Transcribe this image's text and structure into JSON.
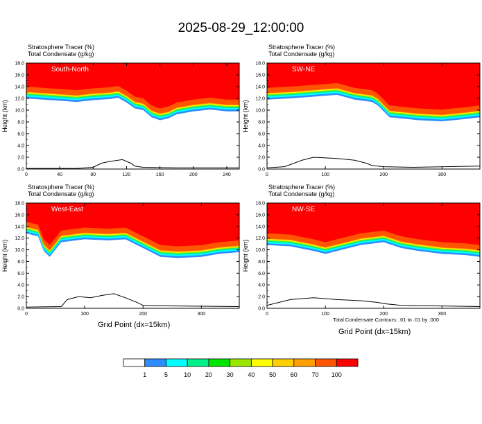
{
  "title": "2025-08-29_12:00:00",
  "shading_label": "Stratosphere Tracer",
  "shading_units": "(%)",
  "contour_label": "Total Condensate",
  "contour_units": "(g/kg)",
  "ylabel": "Height (km)",
  "xlabel": "Grid Point (dx=15km)",
  "contour_note": "Total Condensate Contours: .01 to .01 by .000",
  "colors": {
    "bands": [
      "#ffffff",
      "#2e8cff",
      "#00ffff",
      "#00f08c",
      "#00e600",
      "#9be600",
      "#ffff00",
      "#ffd000",
      "#ffa000",
      "#ff5500",
      "#ff0000"
    ],
    "line": "#000000",
    "terrain": "#000000"
  },
  "colorbar": {
    "labels": [
      "1",
      "5",
      "10",
      "20",
      "30",
      "40",
      "50",
      "60",
      "70",
      "100"
    ]
  },
  "chart_data": [
    {
      "type": "heatmap",
      "panel": "South-North",
      "ylim": [
        0,
        18
      ],
      "yticks": [
        "0.0",
        "2.0",
        "4.0",
        "6.0",
        "8.0",
        "10.0",
        "12.0",
        "14.0",
        "16.0",
        "18.0"
      ],
      "xlim": [
        0,
        255
      ],
      "xticks": [
        "0",
        "40",
        "80",
        "120",
        "160",
        "200",
        "240"
      ],
      "xtick_values": [
        0,
        40,
        80,
        120,
        160,
        200,
        240
      ],
      "tropopause_base_km": [
        [
          0,
          13.2
        ],
        [
          20,
          13.0
        ],
        [
          40,
          12.8
        ],
        [
          60,
          12.6
        ],
        [
          80,
          12.9
        ],
        [
          100,
          13.1
        ],
        [
          110,
          13.3
        ],
        [
          120,
          12.5
        ],
        [
          130,
          11.5
        ],
        [
          140,
          11.2
        ],
        [
          150,
          10.0
        ],
        [
          160,
          9.5
        ],
        [
          170,
          9.8
        ],
        [
          180,
          10.5
        ],
        [
          200,
          11.0
        ],
        [
          220,
          11.3
        ],
        [
          240,
          11.0
        ],
        [
          255,
          11.0
        ]
      ],
      "terrain_km": [
        [
          0,
          0.1
        ],
        [
          60,
          0.1
        ],
        [
          80,
          0.3
        ],
        [
          90,
          1.0
        ],
        [
          100,
          1.3
        ],
        [
          115,
          1.6
        ],
        [
          125,
          1.0
        ],
        [
          130,
          0.5
        ],
        [
          140,
          0.3
        ],
        [
          180,
          0.2
        ],
        [
          255,
          0.2
        ]
      ]
    },
    {
      "type": "heatmap",
      "panel": "SW-NE",
      "ylim": [
        0,
        18
      ],
      "yticks": [
        "0.0",
        "2.0",
        "4.0",
        "6.0",
        "8.0",
        "10.0",
        "12.0",
        "14.0",
        "16.0",
        "18.0"
      ],
      "xlim": [
        0,
        365
      ],
      "xticks": [
        "0",
        "100",
        "200",
        "300"
      ],
      "xtick_values": [
        0,
        100,
        200,
        300
      ],
      "tropopause_base_km": [
        [
          0,
          13.0
        ],
        [
          40,
          13.2
        ],
        [
          80,
          13.5
        ],
        [
          120,
          13.8
        ],
        [
          150,
          13.0
        ],
        [
          180,
          12.6
        ],
        [
          190,
          12.0
        ],
        [
          200,
          11.0
        ],
        [
          210,
          10.0
        ],
        [
          230,
          9.8
        ],
        [
          260,
          9.5
        ],
        [
          300,
          9.3
        ],
        [
          340,
          9.7
        ],
        [
          365,
          10.0
        ]
      ],
      "terrain_km": [
        [
          0,
          0.2
        ],
        [
          30,
          0.4
        ],
        [
          60,
          1.5
        ],
        [
          80,
          2.0
        ],
        [
          120,
          1.8
        ],
        [
          150,
          1.5
        ],
        [
          170,
          1.0
        ],
        [
          180,
          0.6
        ],
        [
          200,
          0.4
        ],
        [
          250,
          0.3
        ],
        [
          365,
          0.5
        ]
      ]
    },
    {
      "type": "heatmap",
      "panel": "West-East",
      "ylim": [
        0,
        18
      ],
      "yticks": [
        "0.0",
        "2.0",
        "4.0",
        "6.0",
        "8.0",
        "10.0",
        "12.0",
        "14.0",
        "16.0",
        "18.0"
      ],
      "xlim": [
        0,
        365
      ],
      "xticks": [
        "0",
        "100",
        "200",
        "300"
      ],
      "xtick_values": [
        0,
        100,
        200,
        300
      ],
      "tropopause_base_km": [
        [
          0,
          14.0
        ],
        [
          20,
          13.5
        ],
        [
          30,
          11.0
        ],
        [
          40,
          10.0
        ],
        [
          60,
          12.5
        ],
        [
          100,
          13.0
        ],
        [
          140,
          12.8
        ],
        [
          170,
          13.0
        ],
        [
          200,
          11.5
        ],
        [
          230,
          10.0
        ],
        [
          260,
          9.8
        ],
        [
          300,
          10.0
        ],
        [
          330,
          10.5
        ],
        [
          365,
          10.8
        ]
      ],
      "terrain_km": [
        [
          0,
          0.2
        ],
        [
          60,
          0.3
        ],
        [
          70,
          1.5
        ],
        [
          90,
          2.0
        ],
        [
          110,
          1.8
        ],
        [
          130,
          2.2
        ],
        [
          150,
          2.5
        ],
        [
          170,
          1.8
        ],
        [
          190,
          1.0
        ],
        [
          200,
          0.5
        ],
        [
          250,
          0.4
        ],
        [
          365,
          0.3
        ]
      ]
    },
    {
      "type": "heatmap",
      "panel": "NW-SE",
      "ylim": [
        0,
        18
      ],
      "yticks": [
        "0.0",
        "2.0",
        "4.0",
        "6.0",
        "8.0",
        "10.0",
        "12.0",
        "14.0",
        "16.0",
        "18.0"
      ],
      "xlim": [
        0,
        365
      ],
      "xticks": [
        "0",
        "100",
        "200",
        "300"
      ],
      "xtick_values": [
        0,
        100,
        200,
        300
      ],
      "tropopause_base_km": [
        [
          0,
          12.0
        ],
        [
          40,
          11.8
        ],
        [
          80,
          11.0
        ],
        [
          100,
          10.5
        ],
        [
          120,
          11.0
        ],
        [
          140,
          11.5
        ],
        [
          160,
          12.0
        ],
        [
          200,
          12.5
        ],
        [
          230,
          11.5
        ],
        [
          260,
          11.0
        ],
        [
          300,
          10.5
        ],
        [
          340,
          10.3
        ],
        [
          365,
          10.0
        ]
      ],
      "terrain_km": [
        [
          0,
          0.5
        ],
        [
          40,
          1.5
        ],
        [
          80,
          1.8
        ],
        [
          120,
          1.5
        ],
        [
          160,
          1.3
        ],
        [
          190,
          1.0
        ],
        [
          200,
          0.8
        ],
        [
          230,
          0.5
        ],
        [
          300,
          0.4
        ],
        [
          365,
          0.3
        ]
      ]
    }
  ]
}
